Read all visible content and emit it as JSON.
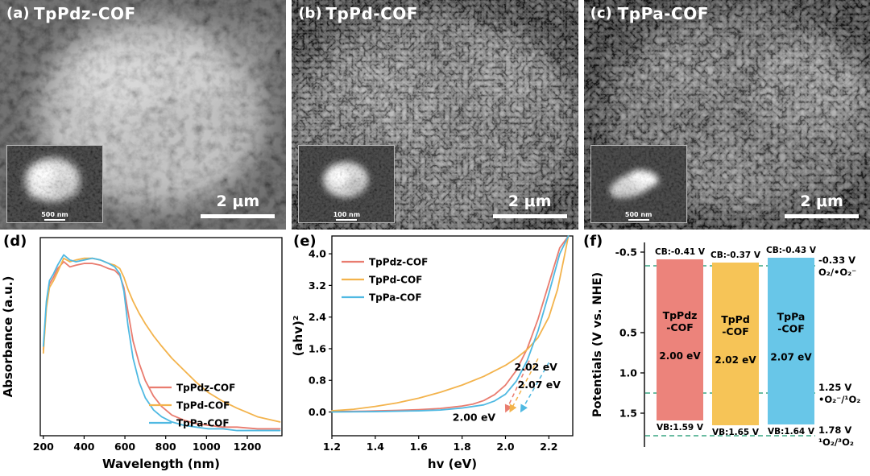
{
  "panels": {
    "a": {
      "label": "(a)",
      "sample": "TpPdz-COF",
      "scalebar": "2 μm",
      "inset_scale": "500 nm"
    },
    "b": {
      "label": "(b)",
      "sample": "TpPd-COF",
      "scalebar": "2 μm",
      "inset_scale": "100 nm"
    },
    "c": {
      "label": "(c)",
      "sample": "TpPa-COF",
      "scalebar": "2 μm",
      "inset_scale": "500 nm"
    },
    "d": {
      "label": "(d)"
    },
    "e": {
      "label": "(e)"
    },
    "f": {
      "label": "(f)"
    }
  },
  "chart_data": [
    {
      "id": "uvvis",
      "type": "line",
      "title": "",
      "xlabel": "Wavelength (nm)",
      "ylabel": "Absorbance (a.u.)",
      "xlim": [
        185,
        1370
      ],
      "ylim": [
        0,
        1.15
      ],
      "xticks": [
        200,
        400,
        600,
        800,
        1000,
        1200
      ],
      "xtick_decimals": 0,
      "legend_position": "lower-center",
      "series": [
        {
          "name": "TpPdz-COF",
          "color": "#e97c6f",
          "x": [
            200,
            215,
            230,
            250,
            270,
            300,
            330,
            360,
            400,
            440,
            480,
            520,
            550,
            575,
            595,
            615,
            640,
            670,
            700,
            740,
            780,
            830,
            890,
            950,
            1010,
            1080,
            1150,
            1250,
            1360
          ],
          "y": [
            0.5,
            0.76,
            0.88,
            0.92,
            0.97,
            1.01,
            0.98,
            0.99,
            1.0,
            1.0,
            0.99,
            0.97,
            0.96,
            0.93,
            0.86,
            0.72,
            0.55,
            0.42,
            0.32,
            0.23,
            0.17,
            0.12,
            0.09,
            0.07,
            0.06,
            0.05,
            0.05,
            0.04,
            0.04
          ]
        },
        {
          "name": "TpPd-COF",
          "color": "#f3b34c",
          "x": [
            200,
            215,
            230,
            250,
            270,
            300,
            330,
            360,
            400,
            440,
            480,
            520,
            550,
            575,
            595,
            615,
            640,
            670,
            700,
            740,
            780,
            830,
            890,
            950,
            1010,
            1080,
            1150,
            1250,
            1360
          ],
          "y": [
            0.48,
            0.74,
            0.86,
            0.9,
            0.95,
            1.03,
            1.01,
            1.02,
            1.03,
            1.03,
            1.02,
            1.0,
            0.99,
            0.97,
            0.92,
            0.85,
            0.78,
            0.71,
            0.65,
            0.58,
            0.52,
            0.45,
            0.38,
            0.31,
            0.25,
            0.2,
            0.16,
            0.11,
            0.08
          ]
        },
        {
          "name": "TpPa-COF",
          "color": "#4fb9e2",
          "x": [
            200,
            215,
            230,
            250,
            270,
            300,
            330,
            360,
            400,
            440,
            480,
            520,
            550,
            575,
            595,
            615,
            640,
            670,
            700,
            740,
            780,
            830,
            890,
            950,
            1010,
            1080,
            1150,
            1250,
            1360
          ],
          "y": [
            0.52,
            0.78,
            0.9,
            0.94,
            0.99,
            1.05,
            1.02,
            1.01,
            1.02,
            1.03,
            1.02,
            1.0,
            0.98,
            0.94,
            0.84,
            0.64,
            0.45,
            0.31,
            0.22,
            0.15,
            0.11,
            0.08,
            0.06,
            0.05,
            0.04,
            0.04,
            0.03,
            0.03,
            0.03
          ]
        }
      ]
    },
    {
      "id": "tauc",
      "type": "line",
      "title": "",
      "xlabel": "hv (eV)",
      "ylabel": "(ahv)²",
      "xlim": [
        1.2,
        2.31
      ],
      "ylim": [
        -0.6,
        4.45
      ],
      "xticks": [
        1.2,
        1.4,
        1.6,
        1.8,
        2.0,
        2.2
      ],
      "xtick_decimals": 1,
      "yticks": [
        0.0,
        0.8,
        1.6,
        2.4,
        3.2,
        4.0
      ],
      "ytick_decimals": 1,
      "legend_position": "upper-left",
      "series": [
        {
          "name": "TpPdz-COF",
          "color": "#e97c6f",
          "x": [
            1.2,
            1.35,
            1.5,
            1.6,
            1.7,
            1.8,
            1.85,
            1.9,
            1.95,
            2.0,
            2.05,
            2.1,
            2.15,
            2.2,
            2.25,
            2.29
          ],
          "y": [
            0.01,
            0.02,
            0.04,
            0.06,
            0.09,
            0.15,
            0.2,
            0.29,
            0.44,
            0.68,
            1.05,
            1.6,
            2.35,
            3.25,
            4.15,
            4.45
          ]
        },
        {
          "name": "TpPd-COF",
          "color": "#f3b34c",
          "x": [
            1.2,
            1.3,
            1.4,
            1.5,
            1.6,
            1.7,
            1.8,
            1.9,
            2.0,
            2.05,
            2.1,
            2.15,
            2.2,
            2.24,
            2.27,
            2.29
          ],
          "y": [
            0.03,
            0.07,
            0.14,
            0.23,
            0.35,
            0.5,
            0.68,
            0.9,
            1.18,
            1.36,
            1.58,
            1.88,
            2.4,
            3.1,
            3.9,
            4.45
          ]
        },
        {
          "name": "TpPa-COF",
          "color": "#4fb9e2",
          "x": [
            1.2,
            1.4,
            1.6,
            1.7,
            1.8,
            1.9,
            1.95,
            2.0,
            2.05,
            2.1,
            2.15,
            2.2,
            2.25,
            2.29
          ],
          "y": [
            0.0,
            0.01,
            0.03,
            0.05,
            0.1,
            0.18,
            0.28,
            0.45,
            0.78,
            1.3,
            2.05,
            3.0,
            4.0,
            4.45
          ]
        }
      ],
      "dashed": [
        {
          "color": "#e97c6f",
          "x1": 2.11,
          "y1": 1.3,
          "x2": 2.002,
          "y2": 0.02
        },
        {
          "color": "#f3b34c",
          "x1": 2.15,
          "y1": 1.35,
          "x2": 2.022,
          "y2": 0.02
        },
        {
          "color": "#4fb9e2",
          "x1": 2.2,
          "y1": 1.25,
          "x2": 2.072,
          "y2": 0.02
        }
      ],
      "annotations": [
        {
          "text": "2.00 eV",
          "x": 1.855,
          "y": -0.22
        },
        {
          "text": "2.02 eV",
          "x": 2.14,
          "y": 1.05
        },
        {
          "text": "2.07 eV",
          "x": 2.155,
          "y": 0.6
        }
      ]
    },
    {
      "id": "bands",
      "type": "band",
      "ylabel": "Potentials (V vs. NHE)",
      "ylim": [
        -0.62,
        1.92
      ],
      "yticks": [
        -0.5,
        0.5,
        1.0,
        1.5
      ],
      "ref_color": "#3aa584",
      "bars": [
        {
          "name_line1": "TpPdz",
          "name_line2": "-COF",
          "cb": -0.41,
          "vb": 1.59,
          "gap": "2.00 eV",
          "cb_label": "CB:-0.41 V",
          "vb_label": "VB:1.59 V",
          "color": "#ec837b"
        },
        {
          "name_line1": "TpPd",
          "name_line2": "-COF",
          "cb": -0.37,
          "vb": 1.65,
          "gap": "2.02 eV",
          "cb_label": "CB:-0.37 V",
          "vb_label": "VB:1.65 V",
          "color": "#f6c457"
        },
        {
          "name_line1": "TpPa",
          "name_line2": "-COF",
          "cb": -0.43,
          "vb": 1.64,
          "gap": "2.07 eV",
          "cb_label": "CB:-0.43 V",
          "vb_label": "VB:1.64 V",
          "color": "#68c6e8"
        }
      ],
      "ref_lines": [
        {
          "v": -0.33,
          "label_line1": "-0.33 V",
          "label_line2": "O₂/•O₂⁻"
        },
        {
          "v": 1.25,
          "label_line1": "1.25 V",
          "label_line2": "•O₂⁻/¹O₂"
        },
        {
          "v": 1.78,
          "label_line1": "1.78 V",
          "label_line2": "¹O₂/³O₂"
        }
      ]
    }
  ]
}
